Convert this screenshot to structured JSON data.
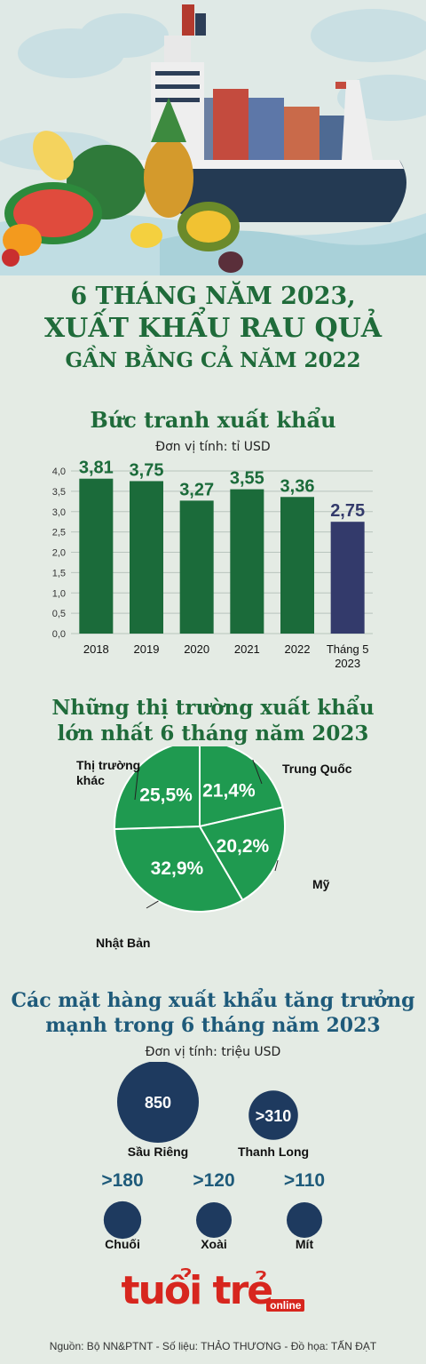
{
  "header": {
    "title_line1": "6 THÁNG NĂM 2023,",
    "title_line2": "XUẤT KHẨU RAU QUẢ",
    "title_line3": "GẦN BẰNG CẢ NĂM 2022"
  },
  "section1": {
    "title": "Bức tranh xuất khẩu",
    "unit": "Đơn vị tính: tỉ USD"
  },
  "section2": {
    "title_line1": "Những thị trường xuất khẩu",
    "title_line2": "lớn nhất 6 tháng năm 2023"
  },
  "section3": {
    "title_line1": "Các mặt hàng xuất khẩu tăng trưởng",
    "title_line2": "mạnh trong 6 tháng năm 2023",
    "unit": "Đơn vị tính: triệu USD"
  },
  "chart_data": [
    {
      "type": "bar",
      "categories": [
        "2018",
        "2019",
        "2020",
        "2021",
        "2022",
        "Tháng 5 2023"
      ],
      "values": [
        3.81,
        3.75,
        3.27,
        3.55,
        3.36,
        2.75
      ],
      "value_labels": [
        "3,81",
        "3,75",
        "3,27",
        "3,55",
        "3,36",
        "2,75"
      ],
      "colors": [
        "#1b6b3a",
        "#1b6b3a",
        "#1b6b3a",
        "#1b6b3a",
        "#1b6b3a",
        "#333a6b"
      ],
      "ylim": [
        0,
        4.0
      ],
      "yticks": [
        "0,0",
        "0,5",
        "1,0",
        "1,5",
        "2,0",
        "2,5",
        "3,0",
        "3,5",
        "4,0"
      ],
      "grid": true
    },
    {
      "type": "pie",
      "labels": [
        "Trung Quốc",
        "Mỹ",
        "Nhật Bản",
        "Thị trường khác"
      ],
      "values": [
        21.4,
        20.2,
        32.9,
        25.5
      ],
      "value_labels": [
        "21,4%",
        "20,2%",
        "32,9%",
        "25,5%"
      ],
      "color": "#1f9a50"
    },
    {
      "type": "bubble",
      "items": [
        {
          "name": "Sầu Riêng",
          "value": 850,
          "label": "850"
        },
        {
          "name": "Thanh Long",
          "value": 310,
          "label": ">310"
        },
        {
          "name": "Chuối",
          "value": 180,
          "label": ">180"
        },
        {
          "name": "Xoài",
          "value": 120,
          "label": ">120"
        },
        {
          "name": "Mít",
          "value": 110,
          "label": ">110"
        }
      ],
      "color": "#1e3a5f"
    }
  ],
  "footer": {
    "logo_main": "tuổi trẻ",
    "logo_sub": "online",
    "credits": "Nguồn: Bộ NN&PTNT - Số liệu: THẢO THƯƠNG - Đồ họa: TẤN ĐẠT"
  }
}
